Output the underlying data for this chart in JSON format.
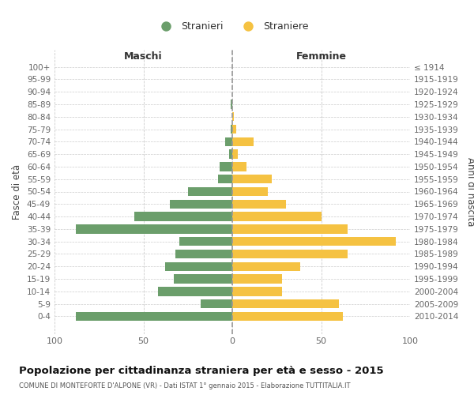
{
  "age_groups": [
    "100+",
    "95-99",
    "90-94",
    "85-89",
    "80-84",
    "75-79",
    "70-74",
    "65-69",
    "60-64",
    "55-59",
    "50-54",
    "45-49",
    "40-44",
    "35-39",
    "30-34",
    "25-29",
    "20-24",
    "15-19",
    "10-14",
    "5-9",
    "0-4"
  ],
  "birth_years": [
    "≤ 1914",
    "1915-1919",
    "1920-1924",
    "1925-1929",
    "1930-1934",
    "1935-1939",
    "1940-1944",
    "1945-1949",
    "1950-1954",
    "1955-1959",
    "1960-1964",
    "1965-1969",
    "1970-1974",
    "1975-1979",
    "1980-1984",
    "1985-1989",
    "1990-1994",
    "1995-1999",
    "2000-2004",
    "2005-2009",
    "2010-2014"
  ],
  "maschi": [
    0,
    0,
    0,
    1,
    0,
    1,
    4,
    2,
    7,
    8,
    25,
    35,
    55,
    88,
    30,
    32,
    38,
    33,
    42,
    18,
    88
  ],
  "femmine": [
    0,
    0,
    0,
    0,
    1,
    2,
    12,
    3,
    8,
    22,
    20,
    30,
    50,
    65,
    92,
    65,
    38,
    28,
    28,
    60,
    62
  ],
  "color_maschi": "#6b9e6b",
  "color_femmine": "#f5c242",
  "title": "Popolazione per cittadinanza straniera per età e sesso - 2015",
  "subtitle": "COMUNE DI MONTEFORTE D'ALPONE (VR) - Dati ISTAT 1° gennaio 2015 - Elaborazione TUTTITALIA.IT",
  "label_maschi": "Maschi",
  "label_femmine": "Femmine",
  "ylabel_left": "Fasce di età",
  "ylabel_right": "Anni di nascita",
  "legend_maschi": "Stranieri",
  "legend_femmine": "Straniere",
  "xlim": 100,
  "background_color": "#ffffff",
  "grid_color": "#cccccc"
}
